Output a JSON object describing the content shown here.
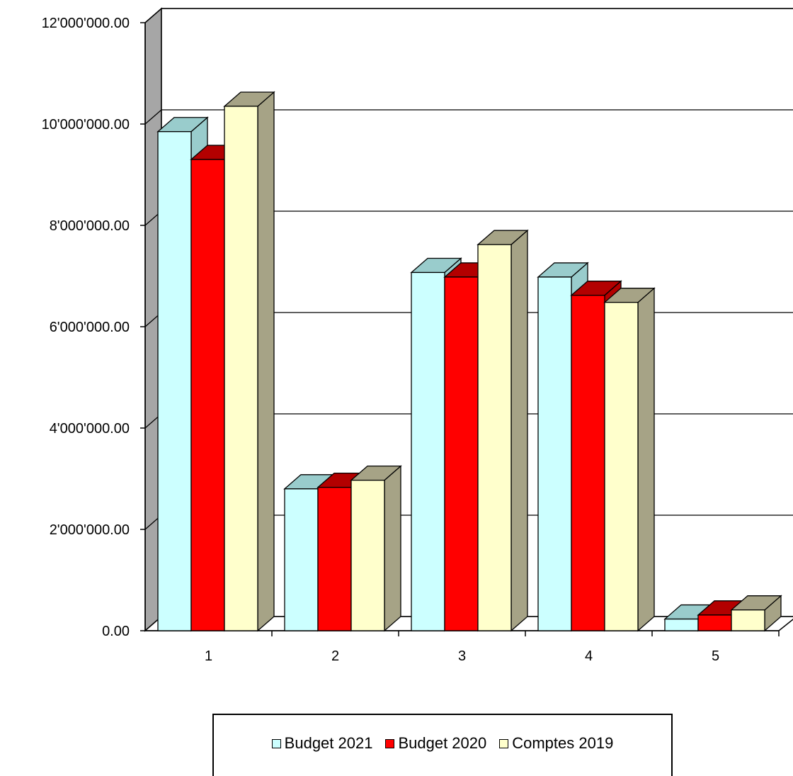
{
  "chart_data": {
    "type": "bar",
    "categories": [
      "1",
      "2",
      "3",
      "4",
      "5"
    ],
    "series": [
      {
        "name": "Budget 2021",
        "values": [
          9850000,
          2800000,
          7070000,
          6980000,
          230000
        ],
        "color": "#ccffff",
        "side": "#99cccc"
      },
      {
        "name": "Budget 2020",
        "values": [
          9300000,
          2830000,
          6980000,
          6620000,
          310000
        ],
        "color": "#ff0000",
        "side": "#b30000"
      },
      {
        "name": "Comptes 2019",
        "values": [
          10350000,
          2970000,
          7620000,
          6480000,
          410000
        ],
        "color": "#ffffcc",
        "side": "#a6a386"
      }
    ],
    "ylim": [
      0,
      12000000
    ],
    "yticks": [
      0,
      2000000,
      4000000,
      6000000,
      8000000,
      10000000,
      12000000
    ],
    "ytick_labels": [
      "0.00",
      "2'000'000.00",
      "4'000'000.00",
      "6'000'000.00",
      "8'000'000.00",
      "10'000'000.00",
      "12'000'000.00"
    ],
    "grid": true,
    "legend_position": "bottom"
  }
}
